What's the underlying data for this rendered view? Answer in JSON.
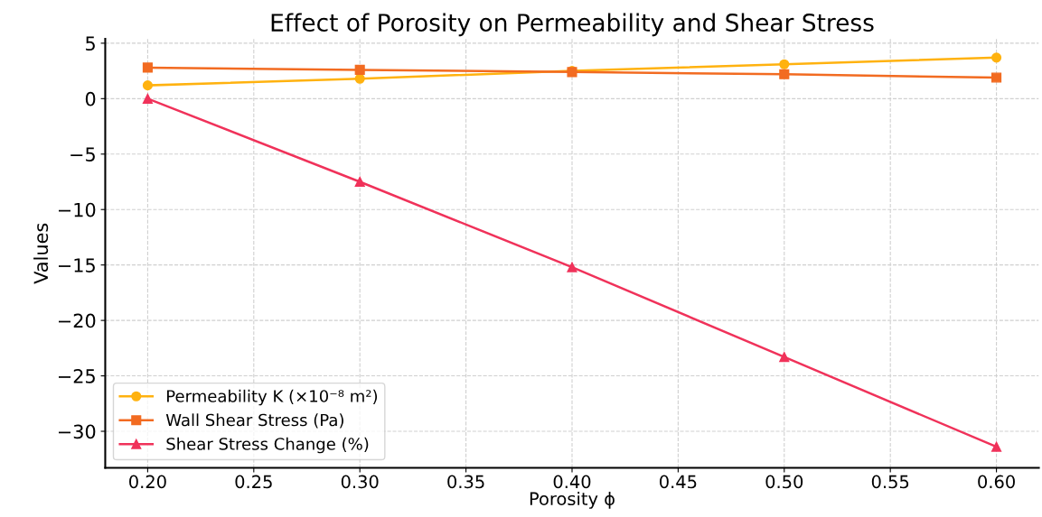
{
  "chart_data": {
    "type": "line",
    "title": "Effect of Porosity on Permeability and Shear Stress",
    "xlabel": "Porosity ϕ",
    "ylabel": "Values",
    "x": [
      0.2,
      0.3,
      0.4,
      0.5,
      0.6
    ],
    "series": [
      {
        "name": "Permeability K (×10⁻⁸ m²)",
        "color": "#ffb20f",
        "marker": "circle",
        "values": [
          1.2,
          1.8,
          2.5,
          3.1,
          3.7
        ]
      },
      {
        "name": "Wall Shear Stress (Pa)",
        "color": "#f26b21",
        "marker": "square",
        "values": [
          2.8,
          2.6,
          2.4,
          2.2,
          1.9
        ]
      },
      {
        "name": "Shear Stress Change (%)",
        "color": "#f0325a",
        "marker": "triangle",
        "values": [
          0,
          -7.5,
          -15.2,
          -23.3,
          -31.4
        ]
      }
    ],
    "xlim": [
      0.18,
      0.62
    ],
    "xticks": [
      {
        "value": 0.2,
        "label": "0.20"
      },
      {
        "value": 0.25,
        "label": "0.25"
      },
      {
        "value": 0.3,
        "label": "0.30"
      },
      {
        "value": 0.35,
        "label": "0.35"
      },
      {
        "value": 0.4,
        "label": "0.40"
      },
      {
        "value": 0.45,
        "label": "0.45"
      },
      {
        "value": 0.5,
        "label": "0.50"
      },
      {
        "value": 0.55,
        "label": "0.55"
      },
      {
        "value": 0.6,
        "label": "0.60"
      }
    ],
    "ylim": [
      -33.3,
      5.4
    ],
    "yticks": [
      {
        "value": -30,
        "label": "−30"
      },
      {
        "value": -25,
        "label": "−25"
      },
      {
        "value": -20,
        "label": "−20"
      },
      {
        "value": -15,
        "label": "−15"
      },
      {
        "value": -10,
        "label": "−10"
      },
      {
        "value": -5,
        "label": "−5"
      },
      0,
      5
    ],
    "grid": true,
    "legend": "bottom left",
    "line_style": "solid"
  }
}
